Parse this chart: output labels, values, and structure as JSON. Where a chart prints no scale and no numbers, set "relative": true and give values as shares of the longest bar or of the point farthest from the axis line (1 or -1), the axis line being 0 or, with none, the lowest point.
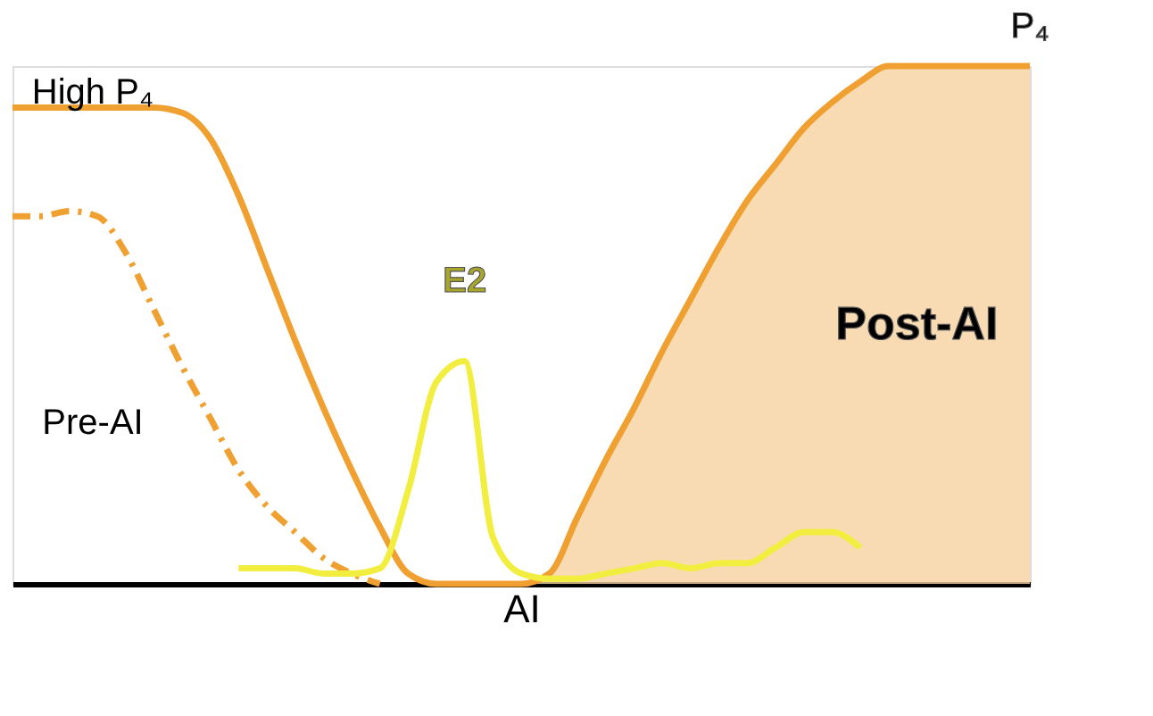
{
  "chart_data": {
    "type": "line",
    "relative": true,
    "xlabel": "AI",
    "categories": [
      null,
      null,
      null,
      null,
      null,
      null,
      null,
      null,
      null,
      null,
      null,
      null,
      null,
      null,
      null,
      null,
      null,
      null,
      null,
      null,
      null,
      null,
      null,
      null,
      null,
      null,
      null,
      null,
      null,
      null,
      null,
      null,
      null,
      null,
      null,
      null,
      null
    ],
    "series": [
      {
        "name": "Post-AI",
        "type": "area",
        "color": "#f7d2a0",
        "values": [
          null,
          null,
          null,
          null,
          null,
          null,
          null,
          null,
          null,
          null,
          null,
          null,
          null,
          null,
          null,
          null,
          null,
          null,
          0,
          0.02,
          0.13,
          0.24,
          0.34,
          0.45,
          0.55,
          0.65,
          0.74,
          0.81,
          0.88,
          0.93,
          0.97,
          1,
          1,
          1,
          1,
          1,
          1
        ]
      },
      {
        "name": "P₄",
        "color": "#f0a030",
        "line_style": "solid",
        "values": [
          0.92,
          0.92,
          0.92,
          0.92,
          0.92,
          0.92,
          0.91,
          0.86,
          0.75,
          0.61,
          0.47,
          0.34,
          0.22,
          0.11,
          0.02,
          0,
          0,
          0,
          0,
          0.02,
          0.13,
          0.24,
          0.34,
          0.45,
          0.55,
          0.65,
          0.74,
          0.81,
          0.88,
          0.93,
          0.97,
          1,
          1,
          1,
          1,
          1,
          1
        ]
      },
      {
        "color": "#f0a030",
        "line_style": "dashed",
        "values": [
          0.71,
          0.71,
          0.72,
          0.71,
          0.64,
          0.53,
          0.42,
          0.32,
          0.22,
          0.15,
          0.1,
          0.05,
          0.02,
          0,
          null,
          null,
          null,
          null,
          null,
          null,
          null,
          null,
          null,
          null,
          null,
          null,
          null,
          null,
          null,
          null,
          null,
          null,
          null,
          null,
          null,
          null,
          null
        ]
      },
      {
        "name": "E2",
        "color": "#f2ee40",
        "line_style": "solid",
        "values": [
          null,
          null,
          null,
          null,
          null,
          null,
          null,
          null,
          0.03,
          0.03,
          0.03,
          0.02,
          0.02,
          0.03,
          0.18,
          0.39,
          0.43,
          0.09,
          0.02,
          0.01,
          0.01,
          0.02,
          0.03,
          0.04,
          0.03,
          0.04,
          0.04,
          0.07,
          0.1,
          0.1,
          0.07,
          null,
          null,
          null,
          null,
          null,
          null
        ]
      }
    ],
    "annotations": [
      "High P₄",
      "Pre-AI"
    ]
  }
}
